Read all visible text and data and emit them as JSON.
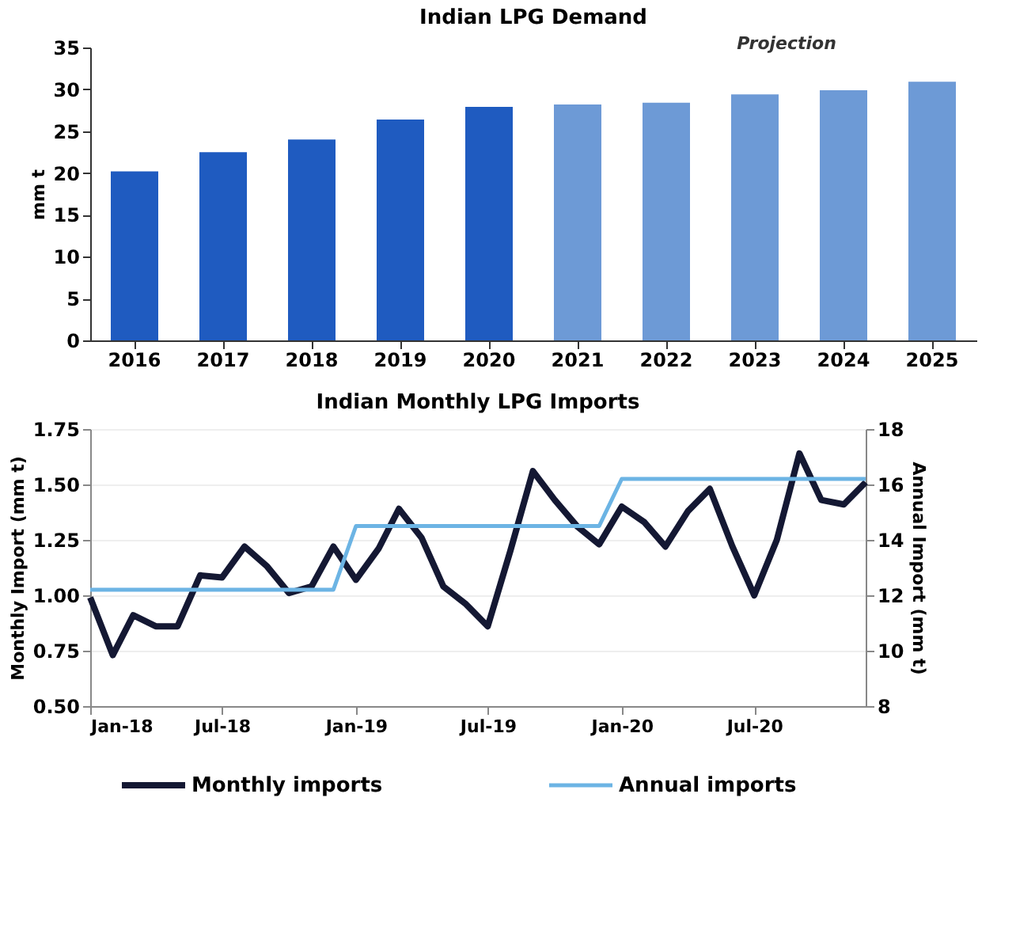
{
  "chart_data": [
    {
      "type": "bar",
      "title": "Indian LPG Demand",
      "ylabel": "mm t",
      "categories": [
        "2016",
        "2017",
        "2018",
        "2019",
        "2020",
        "2021",
        "2022",
        "2023",
        "2024",
        "2025"
      ],
      "values": [
        20.2,
        22.5,
        24.0,
        26.4,
        27.9,
        28.2,
        28.4,
        29.4,
        29.9,
        30.9
      ],
      "colors": [
        "#1f5bc0",
        "#1f5bc0",
        "#1f5bc0",
        "#1f5bc0",
        "#1f5bc0",
        "#6d9ad6",
        "#6d9ad6",
        "#6d9ad6",
        "#6d9ad6",
        "#6d9ad6"
      ],
      "ylim": [
        0,
        35
      ],
      "yticks": [
        0,
        5,
        10,
        15,
        20,
        25,
        30,
        35
      ],
      "grid": false,
      "annotations": [
        "Projection"
      ]
    },
    {
      "type": "line",
      "title": "Indian Monthly LPG Imports",
      "ylabel": "Monthly Import (mm t)",
      "y2label": "Annual Import (mm t)",
      "x": [
        "2018-01",
        "2018-02",
        "2018-03",
        "2018-04",
        "2018-05",
        "2018-06",
        "2018-07",
        "2018-08",
        "2018-09",
        "2018-10",
        "2018-11",
        "2018-12",
        "2019-01",
        "2019-02",
        "2019-03",
        "2019-04",
        "2019-05",
        "2019-06",
        "2019-07",
        "2019-08",
        "2019-09",
        "2019-10",
        "2019-11",
        "2019-12",
        "2020-01",
        "2020-02",
        "2020-03",
        "2020-04",
        "2020-05",
        "2020-06",
        "2020-07",
        "2020-08",
        "2020-09",
        "2020-10",
        "2020-11",
        "2020-12"
      ],
      "series": [
        {
          "name": "Monthly imports",
          "color": "#141833",
          "values": [
            0.99,
            0.73,
            0.91,
            0.86,
            0.86,
            1.09,
            1.08,
            1.22,
            1.13,
            1.01,
            1.04,
            1.22,
            1.07,
            1.21,
            1.39,
            1.26,
            1.04,
            0.96,
            0.86,
            1.2,
            1.56,
            1.43,
            1.31,
            1.23,
            1.4,
            1.33,
            1.22,
            1.38,
            1.48,
            1.22,
            1.0,
            1.25,
            1.64,
            1.43,
            1.41,
            1.51
          ]
        },
        {
          "name": "Annual imports",
          "color": "#6cb4e4",
          "axis": "y2",
          "x": [
            "2018-01",
            "2018-12",
            "2019-01",
            "2019-12",
            "2020-01",
            "2020-12"
          ],
          "values": [
            12.2,
            12.2,
            14.5,
            14.5,
            16.2,
            16.2
          ]
        }
      ],
      "xlim": [
        "2018-01",
        "2020-12"
      ],
      "xticks": [
        {
          "value": "2018-01",
          "label": "Jan-18"
        },
        {
          "value": "2018-07",
          "label": "Jul-18"
        },
        {
          "value": "2019-01",
          "label": "Jan-19"
        },
        {
          "value": "2019-07",
          "label": "Jul-19"
        },
        {
          "value": "2020-01",
          "label": "Jan-20"
        },
        {
          "value": "2020-07",
          "label": "Jul-20"
        }
      ],
      "ylim": [
        0.5,
        1.75
      ],
      "yticks": [
        {
          "value": 0.5,
          "label": "0.50"
        },
        {
          "value": 0.75,
          "label": "0.75"
        },
        {
          "value": 1.0,
          "label": "1.00"
        },
        {
          "value": 1.25,
          "label": "1.25"
        },
        {
          "value": 1.5,
          "label": "1.50"
        },
        {
          "value": 1.75,
          "label": "1.75"
        }
      ],
      "y2lim": [
        8,
        18
      ],
      "y2ticks": [
        8,
        10,
        12,
        14,
        16,
        18
      ],
      "grid": "y",
      "legend": "bottom",
      "line_style": "solid",
      "marker": "none"
    }
  ]
}
